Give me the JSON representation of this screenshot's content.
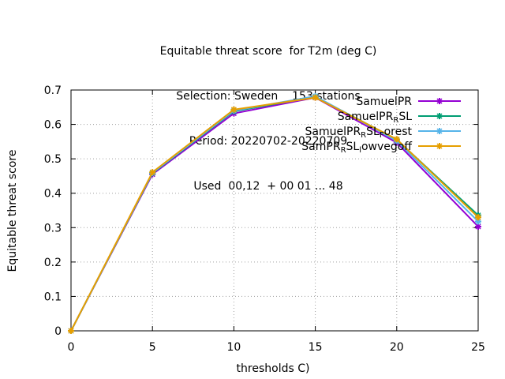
{
  "chart_data": {
    "type": "line",
    "title": [
      "Equitable threat score  for T2m (deg C)",
      "Selection: Sweden    153 stations",
      "Period: 20220702-20220709",
      "Used  00,12  + 00 01 ... 48"
    ],
    "xlabel": "thresholds C)",
    "ylabel": "Equitable threat score",
    "xlim": [
      0,
      25
    ],
    "ylim": [
      0,
      0.7
    ],
    "xticks": [
      0,
      5,
      10,
      15,
      20,
      25
    ],
    "yticks": [
      0,
      0.1,
      0.2,
      0.3,
      0.4,
      0.5,
      0.6,
      0.7
    ],
    "grid": true,
    "legend_position": "top-right",
    "series": [
      {
        "name": "SamuelPR",
        "legend_parts": [
          {
            "t": "SamuelPR"
          }
        ],
        "color": "#9400d3",
        "x": [
          0,
          5,
          10,
          15,
          20,
          25
        ],
        "y": [
          0.0,
          0.455,
          0.632,
          0.678,
          0.547,
          0.303
        ]
      },
      {
        "name": "SamuelPR_R SL",
        "legend_parts": [
          {
            "t": "SamuelPR"
          },
          {
            "t": "R",
            "sub": true
          },
          {
            "t": "SL"
          }
        ],
        "color": "#009e73",
        "x": [
          0,
          5,
          10,
          15,
          20,
          25
        ],
        "y": [
          0.0,
          0.458,
          0.638,
          0.68,
          0.556,
          0.336
        ]
      },
      {
        "name": "SamuelPR_R SL_F orest",
        "legend_parts": [
          {
            "t": "SamuelPR"
          },
          {
            "t": "R",
            "sub": true
          },
          {
            "t": "SL"
          },
          {
            "t": "F",
            "sub": true
          },
          {
            "t": "orest"
          }
        ],
        "color": "#56b4e9",
        "x": [
          0,
          5,
          10,
          15,
          20,
          25
        ],
        "y": [
          0.0,
          0.459,
          0.64,
          0.682,
          0.552,
          0.318
        ]
      },
      {
        "name": "SamPR_R SL_l owvegoff",
        "legend_parts": [
          {
            "t": "SamPR"
          },
          {
            "t": "R",
            "sub": true
          },
          {
            "t": "SL"
          },
          {
            "t": "l",
            "sub": true
          },
          {
            "t": "owvegoff"
          }
        ],
        "color": "#e69f00",
        "x": [
          0,
          5,
          10,
          15,
          20,
          25
        ],
        "y": [
          0.0,
          0.461,
          0.643,
          0.678,
          0.557,
          0.33
        ]
      }
    ]
  }
}
